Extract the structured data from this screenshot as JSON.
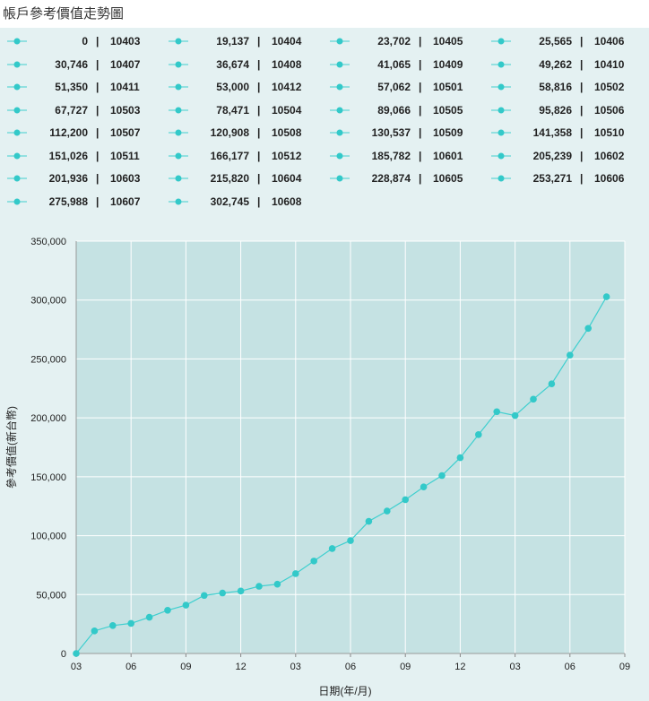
{
  "title": "帳戶參考價值走勢圖",
  "colors": {
    "line": "#3fcfcf",
    "marker": "#33c9c9",
    "plot_bg": "#c5e2e3",
    "panel_bg": "#e4f1f2",
    "grid": "#ffffff"
  },
  "legend": [
    {
      "value": "0",
      "sep": "|",
      "date": "10403"
    },
    {
      "value": "19,137",
      "sep": "|",
      "date": "10404"
    },
    {
      "value": "23,702",
      "sep": "|",
      "date": "10405"
    },
    {
      "value": "25,565",
      "sep": "|",
      "date": "10406"
    },
    {
      "value": "30,746",
      "sep": "|",
      "date": "10407"
    },
    {
      "value": "36,674",
      "sep": "|",
      "date": "10408"
    },
    {
      "value": "41,065",
      "sep": "|",
      "date": "10409"
    },
    {
      "value": "49,262",
      "sep": "|",
      "date": "10410"
    },
    {
      "value": "51,350",
      "sep": "|",
      "date": "10411"
    },
    {
      "value": "53,000",
      "sep": "|",
      "date": "10412"
    },
    {
      "value": "57,062",
      "sep": "|",
      "date": "10501"
    },
    {
      "value": "58,816",
      "sep": "|",
      "date": "10502"
    },
    {
      "value": "67,727",
      "sep": "|",
      "date": "10503"
    },
    {
      "value": "78,471",
      "sep": "|",
      "date": "10504"
    },
    {
      "value": "89,066",
      "sep": "|",
      "date": "10505"
    },
    {
      "value": "95,826",
      "sep": "|",
      "date": "10506"
    },
    {
      "value": "112,200",
      "sep": "|",
      "date": "10507"
    },
    {
      "value": "120,908",
      "sep": "|",
      "date": "10508"
    },
    {
      "value": "130,537",
      "sep": "|",
      "date": "10509"
    },
    {
      "value": "141,358",
      "sep": "|",
      "date": "10510"
    },
    {
      "value": "151,026",
      "sep": "|",
      "date": "10511"
    },
    {
      "value": "166,177",
      "sep": "|",
      "date": "10512"
    },
    {
      "value": "185,782",
      "sep": "|",
      "date": "10601"
    },
    {
      "value": "205,239",
      "sep": "|",
      "date": "10602"
    },
    {
      "value": "201,936",
      "sep": "|",
      "date": "10603"
    },
    {
      "value": "215,820",
      "sep": "|",
      "date": "10604"
    },
    {
      "value": "228,874",
      "sep": "|",
      "date": "10605"
    },
    {
      "value": "253,271",
      "sep": "|",
      "date": "10606"
    },
    {
      "value": "275,988",
      "sep": "|",
      "date": "10607"
    },
    {
      "value": "302,745",
      "sep": "|",
      "date": "10608"
    }
  ],
  "chart_data": {
    "type": "line",
    "title": "帳戶參考價值走勢圖",
    "xlabel": "日期(年/月)",
    "ylabel": "參考價值(新台幣)",
    "x": [
      "10403",
      "10404",
      "10405",
      "10406",
      "10407",
      "10408",
      "10409",
      "10410",
      "10411",
      "10412",
      "10501",
      "10502",
      "10503",
      "10504",
      "10505",
      "10506",
      "10507",
      "10508",
      "10509",
      "10510",
      "10511",
      "10512",
      "10601",
      "10602",
      "10603",
      "10604",
      "10605",
      "10606",
      "10607",
      "10608"
    ],
    "values": [
      0,
      19137,
      23702,
      25565,
      30746,
      36674,
      41065,
      49262,
      51350,
      53000,
      57062,
      58816,
      67727,
      78471,
      89066,
      95826,
      112200,
      120908,
      130537,
      141358,
      151026,
      166177,
      185782,
      205239,
      201936,
      215820,
      228874,
      253271,
      275988,
      302745
    ],
    "ylim": [
      0,
      350000
    ],
    "yticks": [
      "0",
      "50,000",
      "100,000",
      "150,000",
      "200,000",
      "250,000",
      "300,000",
      "350,000"
    ],
    "xlim": [
      "10403",
      "10609"
    ],
    "xticks": [
      "03",
      "06",
      "09",
      "12",
      "03",
      "06",
      "09",
      "12",
      "03",
      "06",
      "09"
    ],
    "grid": true,
    "legend": "top"
  }
}
